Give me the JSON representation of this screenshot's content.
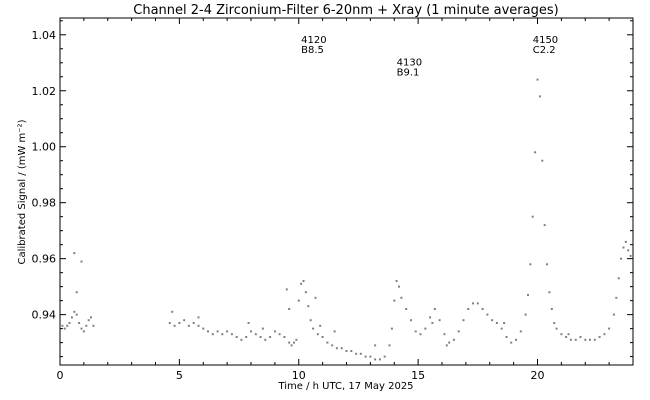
{
  "chart_data": {
    "type": "scatter",
    "title": "Channel 2-4   Zirconium-Filter   6-20nm + Xray   (1 minute averages)",
    "xlabel": "Time / h UTC, 17 May 2025",
    "ylabel": "Calibrated Signal / (mW m⁻²)",
    "xlim": [
      0,
      24
    ],
    "ylim": [
      0.922,
      1.046
    ],
    "x_ticks": [
      0,
      5,
      10,
      15,
      20
    ],
    "x_tick_labels": [
      "0",
      "5",
      "10",
      "15",
      "20"
    ],
    "y_ticks": [
      0.94,
      0.96,
      0.98,
      1.0,
      1.02,
      1.04
    ],
    "y_tick_labels": [
      "0.94",
      "0.96",
      "0.98",
      "1.00",
      "1.02",
      "1.04"
    ],
    "grid": false,
    "legend": "none",
    "marker_color": "#808080",
    "annotations": [
      {
        "number": "4120",
        "class": "B8.5",
        "x": 10.1,
        "y": 1.037
      },
      {
        "number": "4130",
        "class": "B9.1",
        "x": 14.1,
        "y": 1.029
      },
      {
        "number": "4150",
        "class": "C2.2",
        "x": 19.8,
        "y": 1.037
      }
    ],
    "series": [
      {
        "x": [
          0.0,
          0.1,
          0.2,
          0.3,
          0.4,
          0.5,
          0.6,
          0.7,
          0.8,
          0.9,
          1.0,
          1.1,
          1.2,
          1.3,
          1.4,
          0.6,
          0.7,
          0.9,
          4.6,
          4.8,
          5.0,
          5.2,
          5.4,
          5.6,
          5.8,
          6.0,
          6.2,
          6.4,
          6.6,
          6.8,
          7.0,
          7.2,
          7.4,
          7.6,
          7.8,
          8.0,
          8.2,
          8.4,
          8.6,
          8.8,
          9.0,
          9.2,
          9.4,
          9.6,
          9.7,
          9.8,
          9.9,
          10.0,
          10.1,
          10.2,
          10.3,
          10.4,
          10.5,
          10.6,
          10.8,
          11.0,
          11.2,
          11.4,
          11.6,
          11.8,
          12.0,
          12.2,
          12.4,
          12.6,
          12.8,
          13.0,
          13.2,
          13.4,
          13.6,
          13.8,
          13.9,
          14.0,
          14.1,
          14.2,
          14.3,
          14.5,
          14.7,
          14.9,
          15.1,
          15.3,
          15.5,
          15.7,
          15.9,
          16.1,
          16.3,
          16.5,
          16.7,
          16.9,
          17.1,
          17.3,
          17.5,
          17.7,
          17.9,
          18.1,
          18.3,
          18.5,
          18.7,
          18.9,
          19.1,
          19.3,
          19.5,
          19.6,
          19.7,
          19.8,
          19.9,
          20.0,
          20.1,
          20.2,
          20.3,
          20.4,
          20.5,
          20.6,
          20.7,
          20.8,
          21.0,
          21.2,
          21.4,
          21.6,
          21.8,
          22.0,
          22.2,
          22.4,
          22.6,
          22.8,
          23.0,
          23.2,
          23.3,
          23.4,
          23.5,
          23.6,
          23.7,
          23.8,
          23.9,
          24.0,
          9.5,
          9.6,
          10.7,
          10.9,
          11.5,
          7.9,
          8.5,
          13.2,
          15.6,
          16.2,
          18.6,
          21.3,
          5.8,
          4.7
        ],
        "y": [
          0.94,
          0.936,
          0.935,
          0.936,
          0.937,
          0.939,
          0.941,
          0.94,
          0.937,
          0.935,
          0.934,
          0.936,
          0.938,
          0.939,
          0.936,
          0.962,
          0.948,
          0.959,
          0.937,
          0.936,
          0.937,
          0.938,
          0.936,
          0.937,
          0.936,
          0.935,
          0.934,
          0.933,
          0.934,
          0.933,
          0.934,
          0.933,
          0.932,
          0.931,
          0.932,
          0.934,
          0.933,
          0.932,
          0.931,
          0.932,
          0.934,
          0.933,
          0.932,
          0.93,
          0.929,
          0.93,
          0.931,
          0.945,
          0.951,
          0.952,
          0.948,
          0.943,
          0.938,
          0.935,
          0.933,
          0.932,
          0.93,
          0.929,
          0.928,
          0.928,
          0.927,
          0.927,
          0.926,
          0.926,
          0.925,
          0.925,
          0.924,
          0.924,
          0.925,
          0.929,
          0.935,
          0.945,
          0.952,
          0.95,
          0.946,
          0.942,
          0.938,
          0.934,
          0.933,
          0.935,
          0.939,
          0.942,
          0.938,
          0.933,
          0.93,
          0.931,
          0.934,
          0.938,
          0.942,
          0.944,
          0.944,
          0.942,
          0.94,
          0.938,
          0.937,
          0.935,
          0.932,
          0.93,
          0.931,
          0.934,
          0.94,
          0.947,
          0.958,
          0.975,
          0.998,
          1.024,
          1.018,
          0.995,
          0.972,
          0.958,
          0.948,
          0.942,
          0.937,
          0.935,
          0.933,
          0.932,
          0.931,
          0.931,
          0.932,
          0.931,
          0.931,
          0.931,
          0.932,
          0.933,
          0.935,
          0.94,
          0.946,
          0.953,
          0.96,
          0.964,
          0.966,
          0.963,
          0.961,
          0.96,
          0.949,
          0.942,
          0.946,
          0.936,
          0.934,
          0.937,
          0.935,
          0.929,
          0.937,
          0.929,
          0.937,
          0.933,
          0.939,
          0.941
        ]
      }
    ]
  }
}
